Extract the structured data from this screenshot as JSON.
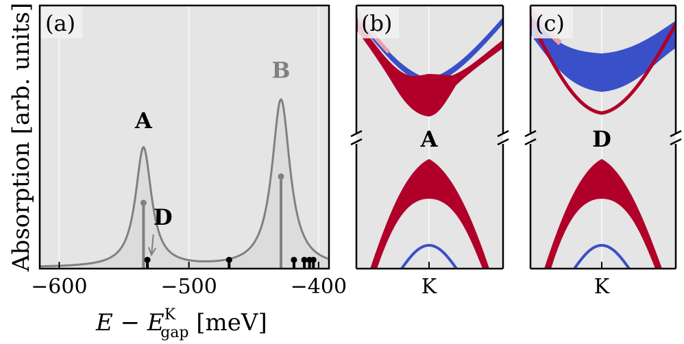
{
  "colors": {
    "background_panel": "#e5e5e5",
    "spectrum_line": "#808080",
    "peak_fill": "#dcdcdc",
    "stick_gray": "#808080",
    "stick_black": "#000000",
    "red_band": "#b0002a",
    "blue_band": "#3a50c8",
    "grid": "#f5f5f5"
  },
  "panel_labels": {
    "a": "(a)",
    "b": "(b)",
    "c": "(c)"
  },
  "chart_data": [
    {
      "panel": "a",
      "type": "line",
      "title": "",
      "xlabel": {
        "main": "E − E",
        "superscript": "K",
        "subscript": "gap",
        "unit": " [meV]"
      },
      "ylabel": "Absorption [arb. units]",
      "xlim": [
        -615,
        -392
      ],
      "ylim": [
        0,
        1.2
      ],
      "xticks": [
        -600,
        -500,
        -400
      ],
      "xtick_labels": [
        "−600",
        "−500",
        "−400"
      ],
      "grid_x": true,
      "series": [
        {
          "name": "absorption spectrum (two Lorentzian peaks)",
          "peaks": [
            {
              "center": -535,
              "height": 0.545,
              "gamma": 7.5
            },
            {
              "center": -429,
              "height": 0.765,
              "gamma": 8.5
            }
          ],
          "baseline": 0.004
        }
      ],
      "sticks": [
        {
          "x": -535,
          "height": 0.3,
          "color": "gray"
        },
        {
          "x": -429,
          "height": 0.42,
          "color": "gray"
        },
        {
          "x": -532,
          "height": 0.04,
          "color": "black"
        },
        {
          "x": -469,
          "height": 0.04,
          "color": "black"
        },
        {
          "x": -419,
          "height": 0.04,
          "color": "black"
        },
        {
          "x": -411,
          "height": 0.04,
          "color": "black"
        },
        {
          "x": -407,
          "height": 0.04,
          "color": "black"
        },
        {
          "x": -404,
          "height": 0.04,
          "color": "black"
        }
      ],
      "annotations": [
        {
          "text": "A",
          "x": -535,
          "y": 0.64,
          "color": "black"
        },
        {
          "text": "B",
          "x": -429,
          "y": 0.87,
          "color": "gray"
        },
        {
          "text": "D",
          "x": -520,
          "y": 0.2,
          "color": "black",
          "arrow_to_x": -532,
          "arrow_to_y": 0.05
        }
      ]
    },
    {
      "panel": "b",
      "type": "band-structure",
      "xtick_labels": [
        "K"
      ],
      "label": "A",
      "broken_axis": true
    },
    {
      "panel": "c",
      "type": "band-structure",
      "xtick_labels": [
        "K"
      ],
      "label": "D",
      "broken_axis": true
    }
  ]
}
